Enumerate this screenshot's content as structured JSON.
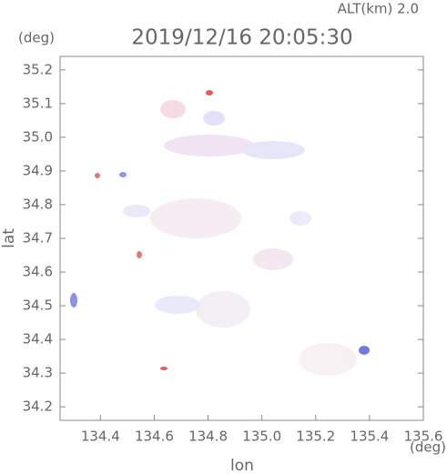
{
  "chart_data": {
    "type": "heatmap",
    "title": "2019/12/16 20:05:30",
    "subtitle": "ALT(km) 2.0",
    "y_unit": "(deg)",
    "x_unit": "(deg)",
    "x_label": "lon",
    "y_label": "lat",
    "xlim": [
      134.25,
      135.6
    ],
    "ylim": [
      34.16,
      35.24
    ],
    "xticks": [
      134.4,
      134.6,
      134.8,
      {
        "value": 135,
        "label": "135.0"
      },
      135.2,
      135.4,
      135.6
    ],
    "yticks": [
      34.2,
      34.3,
      34.4,
      34.5,
      34.6,
      34.7,
      34.8,
      34.9,
      {
        "value": 35,
        "label": "35.0"
      },
      35.1,
      35.2
    ],
    "color": "#666666"
  }
}
